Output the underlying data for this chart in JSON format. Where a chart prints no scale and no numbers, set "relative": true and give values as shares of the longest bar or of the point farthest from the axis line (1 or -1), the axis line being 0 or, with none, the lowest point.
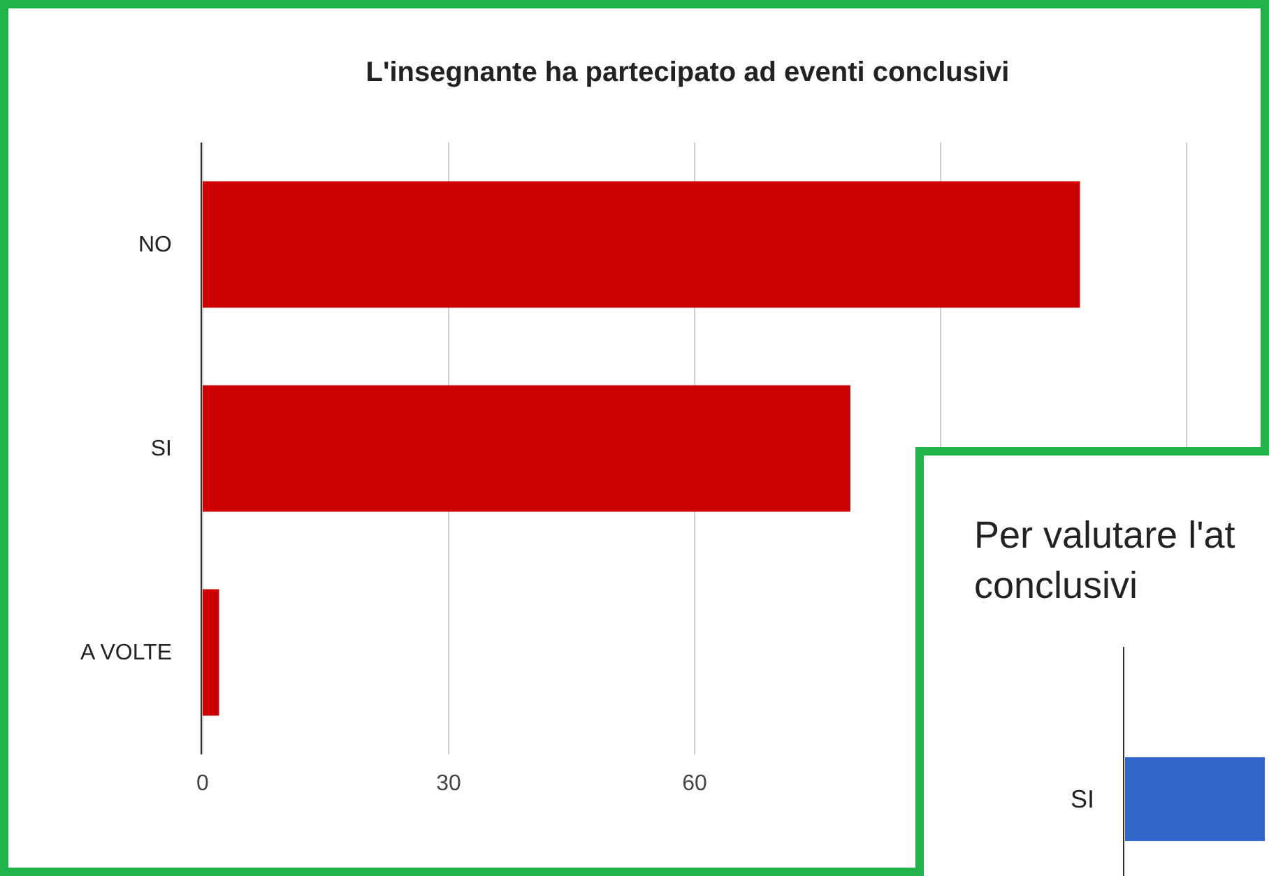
{
  "chart_data": [
    {
      "type": "bar",
      "title": "L'insegnante ha partecipato ad eventi conclusivi",
      "orientation": "horizontal",
      "categories": [
        "NO",
        "SI",
        "A VOLTE"
      ],
      "color": "#cc0000",
      "values": [
        107,
        79,
        2
      ],
      "xlim": [
        0,
        120
      ],
      "xticks": [
        0,
        30,
        60,
        {
          "value": 90,
          "label": null
        },
        {
          "value": 120,
          "label": null
        }
      ],
      "grid": "x"
    },
    {
      "type": "bar",
      "title": "Per valutare l'at conclusivi",
      "orientation": "horizontal",
      "relative": true,
      "categories": [
        "SI"
      ],
      "color": "#3366cc",
      "values": [
        1
      ]
    }
  ]
}
